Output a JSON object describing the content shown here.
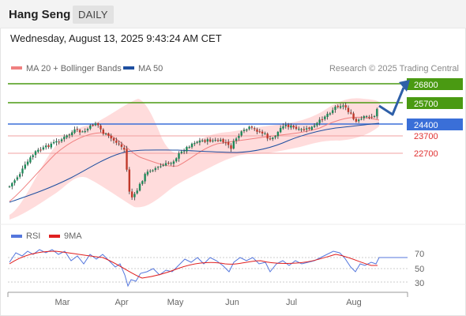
{
  "header": {
    "title": "Hang Seng",
    "timeframe": "DAILY"
  },
  "timestamp": "Wednesday, August 13, 2025 9:43:24 AM CET",
  "legend": {
    "ma20": {
      "label": "MA 20 + Bollinger Bands",
      "color": "#f08080"
    },
    "ma50": {
      "label": "MA 50",
      "color": "#1e4fa0"
    },
    "credit": "Research © 2025 Trading Central"
  },
  "levels": [
    {
      "value": "26800",
      "kind": "resistance",
      "style": "box",
      "color": "#4a9a12"
    },
    {
      "value": "25700",
      "kind": "resistance",
      "style": "box",
      "color": "#4a9a12"
    },
    {
      "value": "24400",
      "kind": "pivot",
      "style": "box",
      "color": "#3a6fd8"
    },
    {
      "value": "23700",
      "kind": "support",
      "style": "text",
      "color": "#e03030"
    },
    {
      "value": "22700",
      "kind": "support",
      "style": "text",
      "color": "#e03030"
    }
  ],
  "months": [
    "Mar",
    "Apr",
    "May",
    "Jun",
    "Jul",
    "Aug"
  ],
  "rsi_legend": {
    "rsi": {
      "label": "RSI",
      "color": "#5577dd"
    },
    "ma9": {
      "label": "9MA",
      "color": "#e02020"
    }
  },
  "rsi_ticks": [
    "70",
    "50",
    "30"
  ],
  "colors": {
    "bull": "#1e8a5a",
    "bear": "#c0392b",
    "band": "#ffd0d0",
    "arrow": "#2e5fa8"
  }
}
